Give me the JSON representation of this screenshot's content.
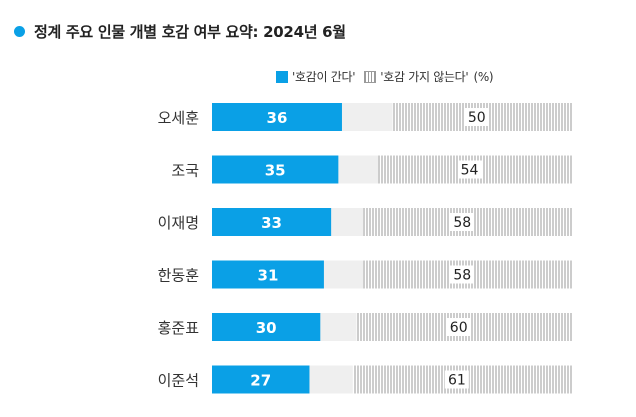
{
  "colors": {
    "accent": "#0aa0e6",
    "neutral_bar": "#efefef",
    "hatch_line": "#9a9a9a"
  },
  "chart_data": {
    "type": "bar",
    "title": "정계 주요 인물 개별 호감 여부 요약: 2024년 6월",
    "legend": [
      {
        "name": "'호감이 간다'",
        "style": "solid-blue"
      },
      {
        "name": "'호감 가지 않는다'",
        "style": "hatched-gray"
      }
    ],
    "unit_label": "(%)",
    "categories": [
      "오세훈",
      "조국",
      "이재명",
      "한동훈",
      "홍준표",
      "이준석"
    ],
    "series": [
      {
        "name": "'호감이 간다'",
        "values": [
          36,
          35,
          33,
          31,
          30,
          27
        ]
      },
      {
        "name": "'호감 가지 않는다'",
        "values": [
          50,
          54,
          58,
          58,
          60,
          61
        ]
      }
    ],
    "xlim": [
      0,
      100
    ],
    "legend_placement": "top-right",
    "grid": false
  }
}
